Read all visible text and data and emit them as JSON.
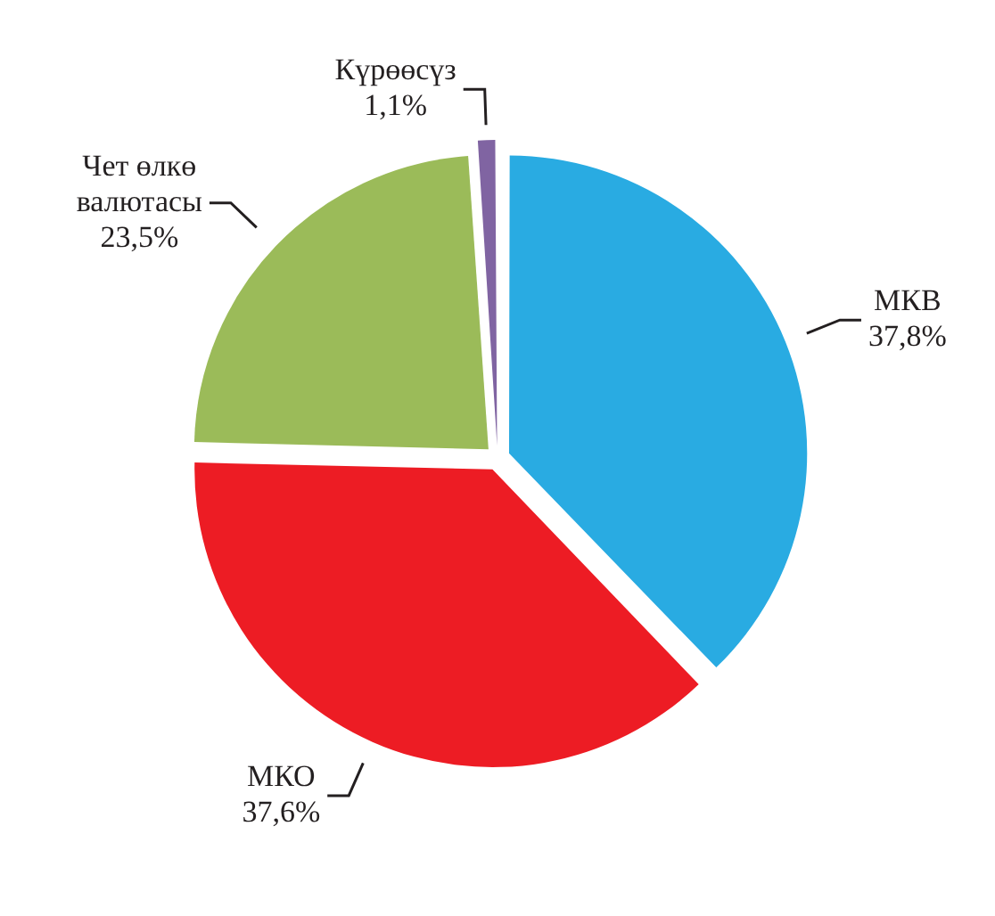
{
  "chart_data": {
    "type": "pie",
    "categories": [
      "МКВ",
      "МКО",
      "Чет өлкө валютасы",
      "Күрөөсүз"
    ],
    "values": [
      37.8,
      37.6,
      23.5,
      1.1
    ],
    "colors": [
      "#29abe2",
      "#ed1c24",
      "#9bbb59",
      "#8064a2"
    ],
    "value_labels": [
      "37,8%",
      "37,6%",
      "23,5%",
      "1,1%"
    ],
    "legend": false
  }
}
